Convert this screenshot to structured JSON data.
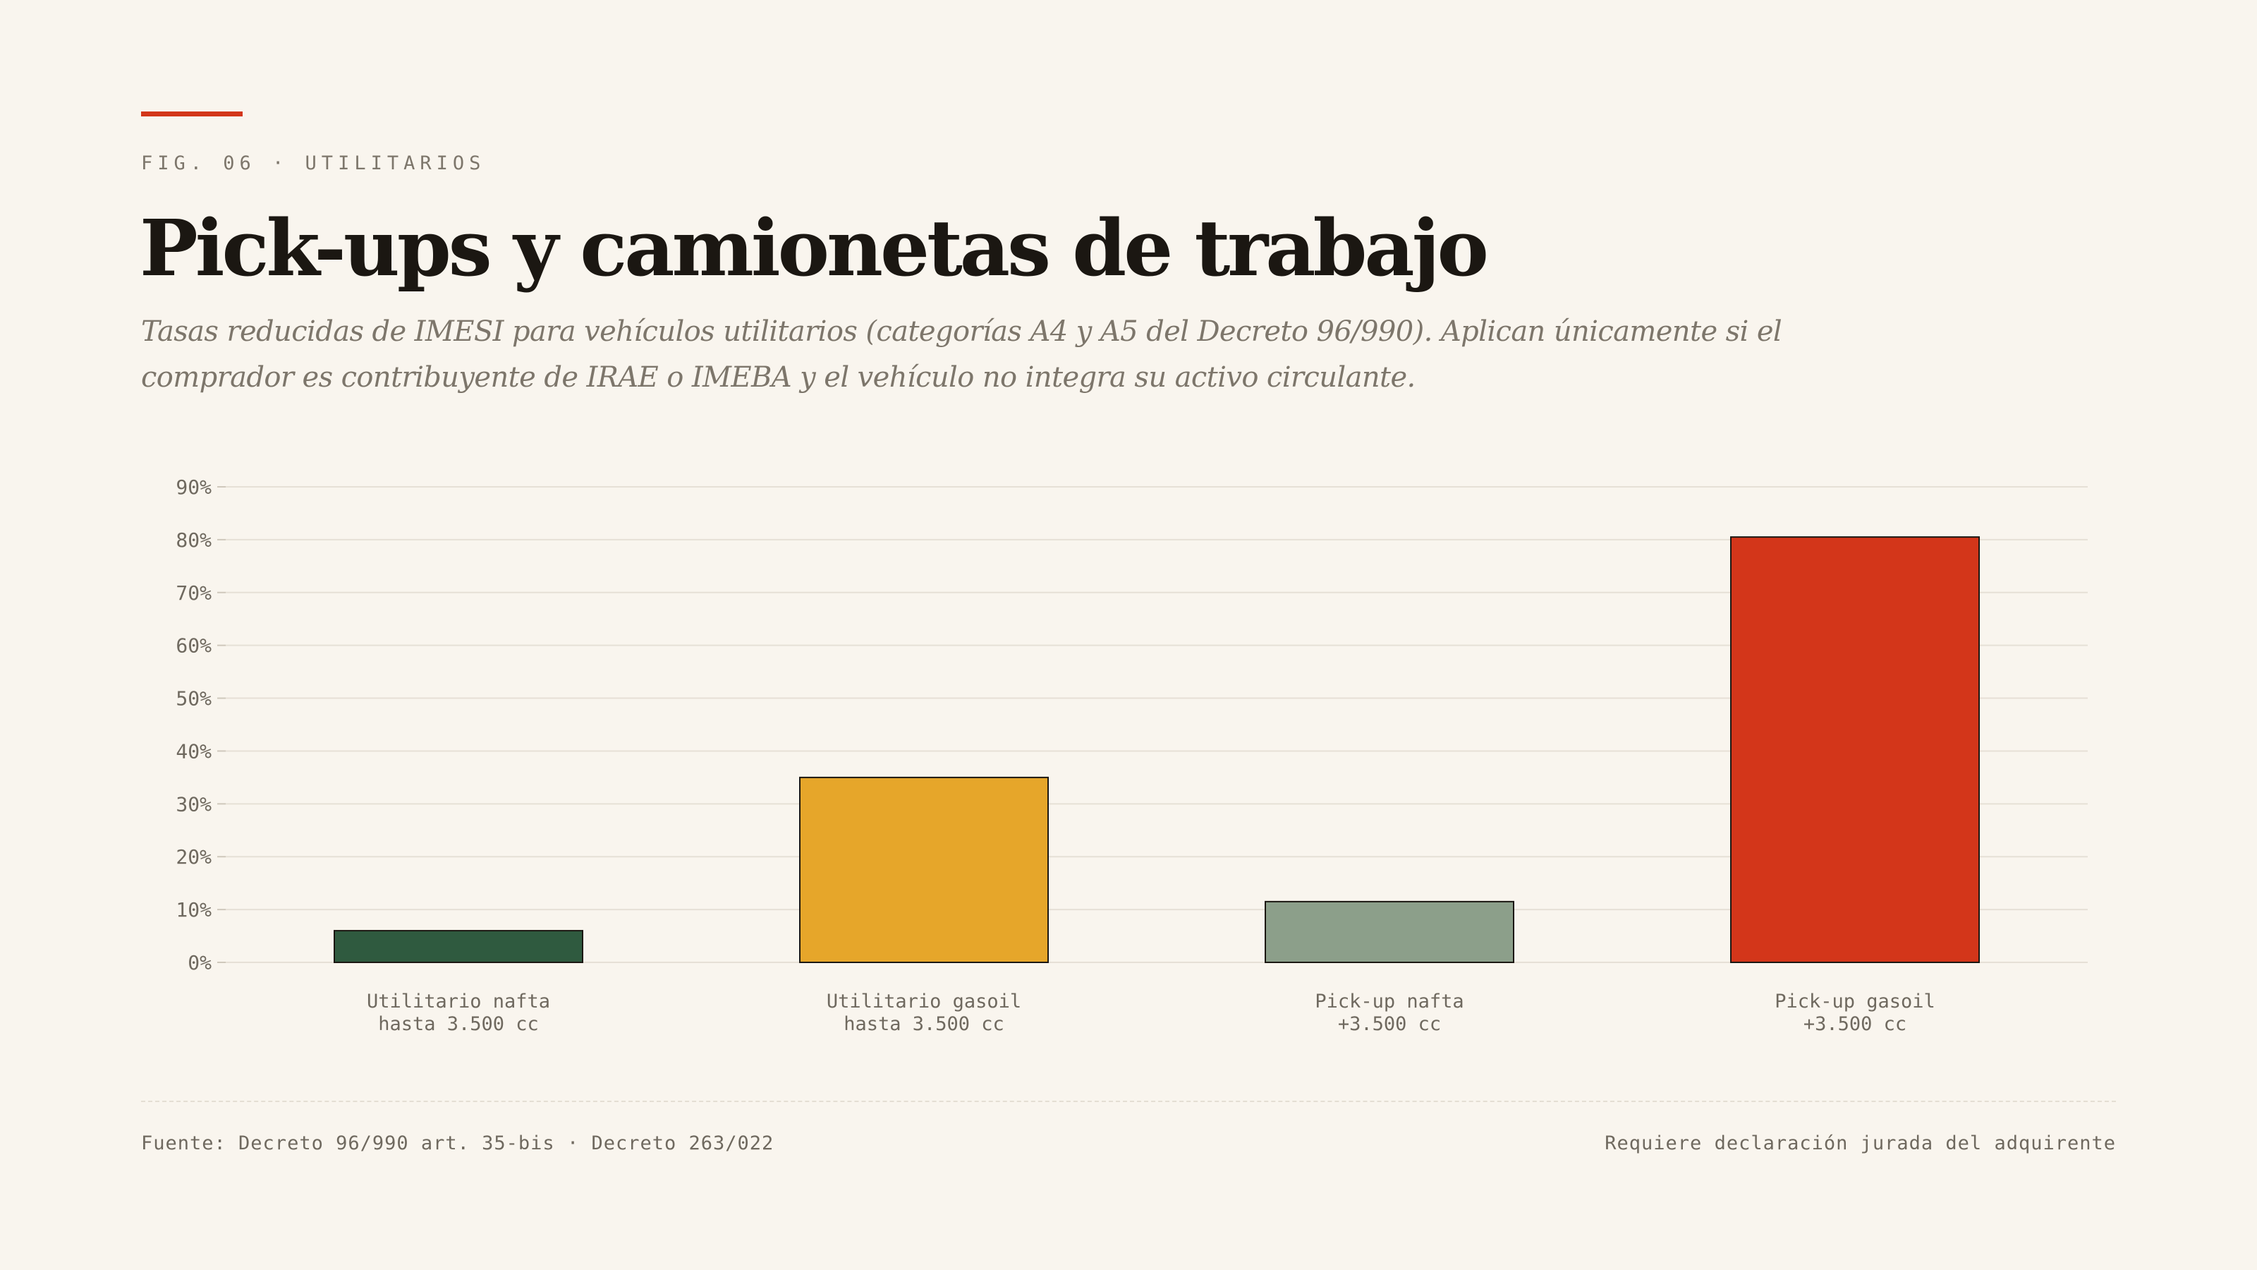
{
  "header": {
    "eyebrow": "FIG. 06 · UTILITARIOS",
    "title": "Pick-ups y camionetas de trabajo",
    "subtitle": "Tasas reducidas de IMESI para vehículos utilitarios (categorías A4 y A5 del Decreto 96/990). Aplican únicamente si el comprador es contribuyente de IRAE o IMEBA y el vehículo no integra su activo circulante."
  },
  "chart_data": {
    "type": "bar",
    "categories": [
      [
        "Utilitario nafta",
        "hasta 3.500 cc"
      ],
      [
        "Utilitario gasoil",
        "hasta 3.500 cc"
      ],
      [
        "Pick-up nafta",
        "+3.500 cc"
      ],
      [
        "Pick-up gasoil",
        "+3.500 cc"
      ]
    ],
    "values": [
      6,
      35,
      11.5,
      80.5
    ],
    "colors": [
      "#2f5a3f",
      "#e6a62a",
      "#8c9f8a",
      "#d3361a"
    ],
    "ylim": [
      0,
      90
    ],
    "yticks": [
      0,
      10,
      20,
      30,
      40,
      50,
      60,
      70,
      80,
      90
    ],
    "tick_suffix": "%",
    "grid": true
  },
  "footer": {
    "source": "Fuente: Decreto 96/990 art. 35-bis · Decreto 263/022",
    "note": "Requiere declaración jurada del adquirente"
  },
  "colors": {
    "accent": "#d3361a",
    "background": "#f9f5ee"
  }
}
